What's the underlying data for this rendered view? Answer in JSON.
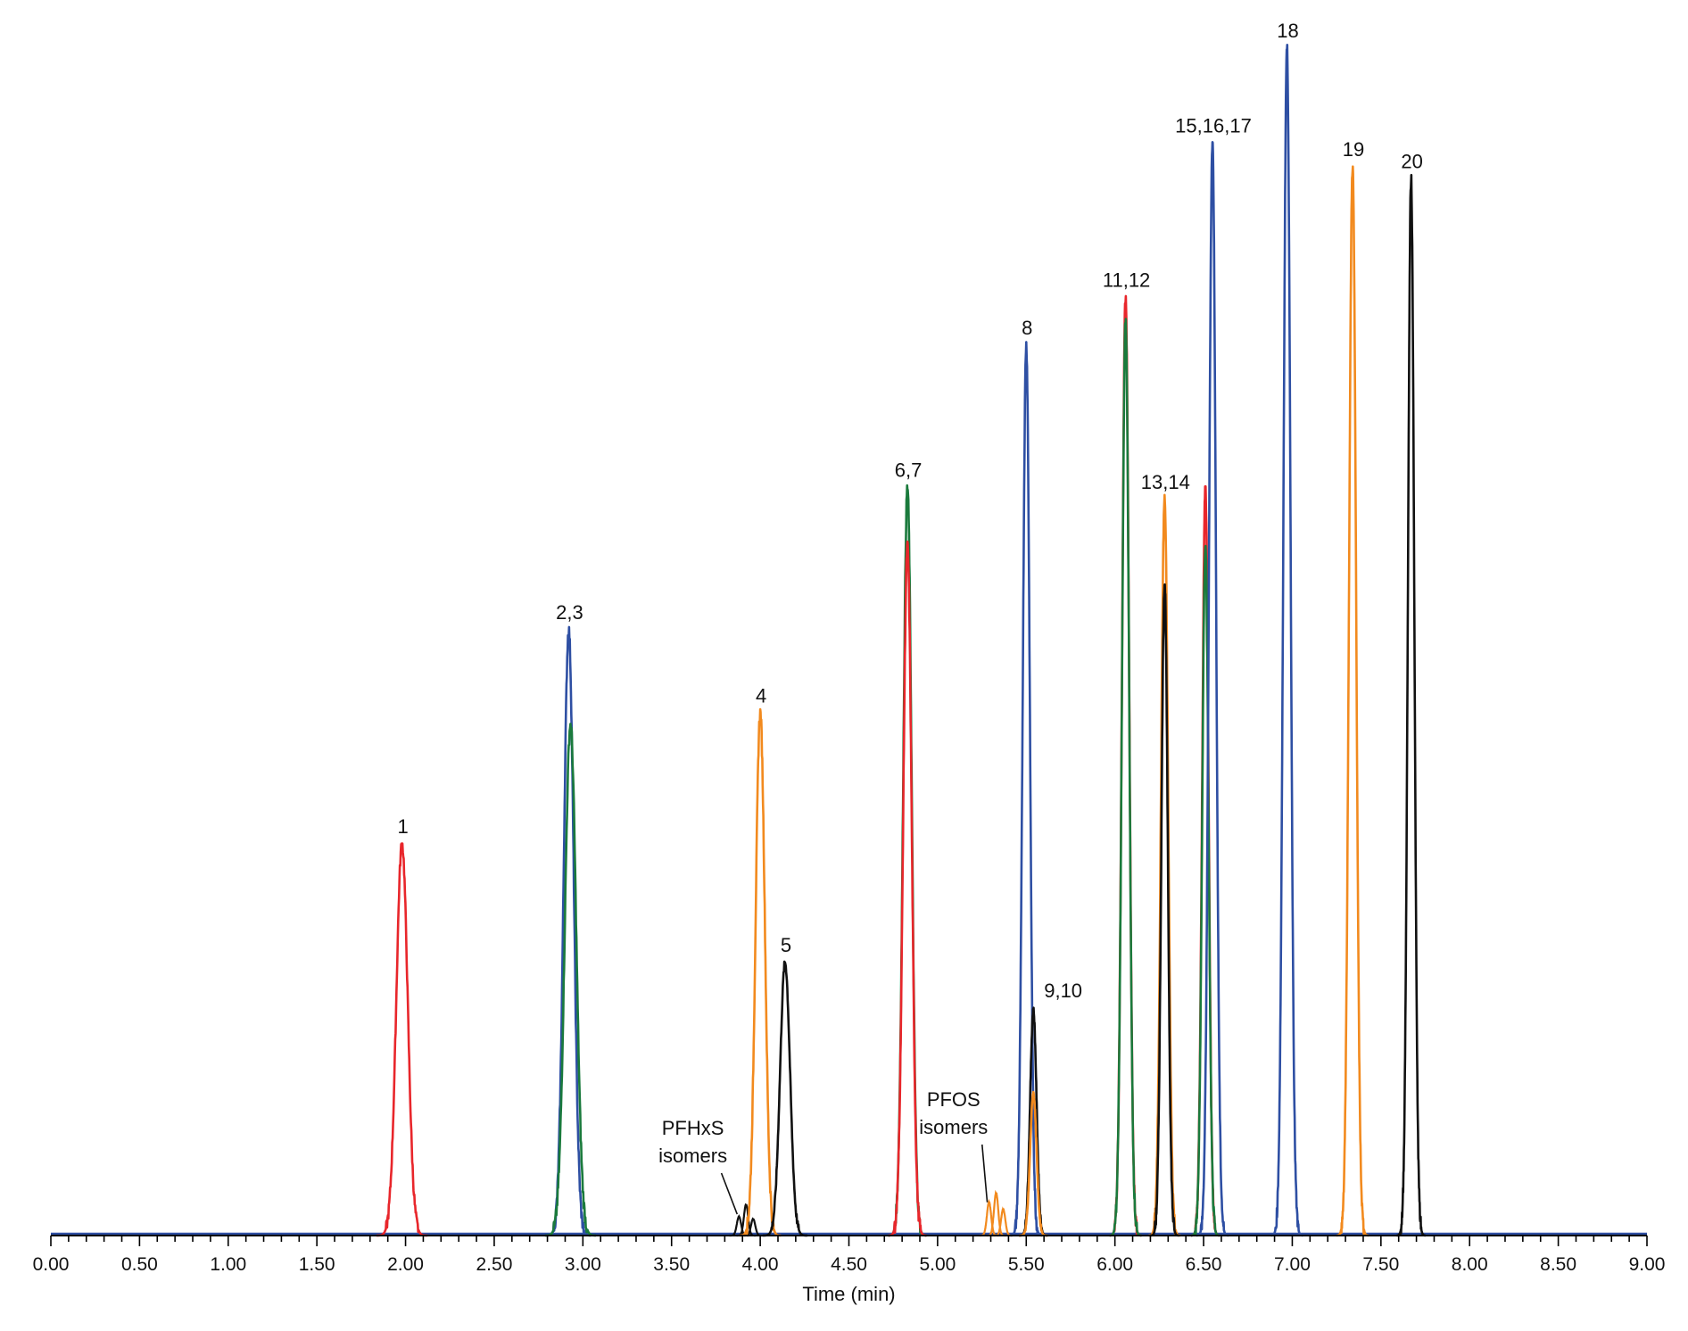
{
  "chart_data": {
    "type": "line",
    "xlabel": "Time (min)",
    "xlim": [
      0,
      9
    ],
    "ylim": [
      0,
      100
    ],
    "tick_labels": [
      "0.00",
      "0.50",
      "1.00",
      "1.50",
      "2.00",
      "2.50",
      "3.00",
      "3.50",
      "4.00",
      "4.50",
      "5.00",
      "5.50",
      "6.00",
      "6.50",
      "7.00",
      "7.50",
      "8.00",
      "8.50",
      "9.00"
    ],
    "colors": {
      "red": "#e8262b",
      "green": "#1a7a3c",
      "orange": "#f28a1e",
      "black": "#111111",
      "blue": "#2e4fa3",
      "axis": "#000000"
    },
    "peaks": [
      {
        "label": "1",
        "rt": 1.98,
        "height": 33,
        "color": "red",
        "width": 0.032
      },
      {
        "label": "2,3",
        "rt": 2.92,
        "height": 51,
        "color": "blue",
        "width": 0.028
      },
      {
        "label": "",
        "rt": 2.93,
        "height": 43,
        "color": "green",
        "width": 0.032
      },
      {
        "label": "4",
        "rt": 4.0,
        "height": 44,
        "color": "orange",
        "width": 0.026
      },
      {
        "label": "5",
        "rt": 4.14,
        "height": 23,
        "color": "black",
        "width": 0.028
      },
      {
        "label": "6,7",
        "rt": 4.83,
        "height": 63,
        "color": "green",
        "width": 0.024
      },
      {
        "label": "",
        "rt": 4.83,
        "height": 58,
        "color": "red",
        "width": 0.024
      },
      {
        "label": "8",
        "rt": 5.5,
        "height": 75,
        "color": "blue",
        "width": 0.02
      },
      {
        "label": "9,10",
        "rt": 5.54,
        "height": 19,
        "color": "black",
        "width": 0.018
      },
      {
        "label": "",
        "rt": 5.54,
        "height": 12,
        "color": "orange",
        "width": 0.018
      },
      {
        "label": "11,12",
        "rt": 6.06,
        "height": 79,
        "color": "red",
        "width": 0.02
      },
      {
        "label": "",
        "rt": 6.06,
        "height": 77,
        "color": "green",
        "width": 0.02
      },
      {
        "label": "13,14",
        "rt": 6.28,
        "height": 62,
        "color": "orange",
        "width": 0.02
      },
      {
        "label": "",
        "rt": 6.28,
        "height": 55,
        "color": "black",
        "width": 0.018
      },
      {
        "label": "",
        "rt": 6.51,
        "height": 63,
        "color": "red",
        "width": 0.018
      },
      {
        "label": "",
        "rt": 6.51,
        "height": 58,
        "color": "green",
        "width": 0.018
      },
      {
        "label": "15,16,17",
        "rt": 6.55,
        "height": 92,
        "color": "blue",
        "width": 0.02
      },
      {
        "label": "18",
        "rt": 6.97,
        "height": 100,
        "color": "blue",
        "width": 0.02
      },
      {
        "label": "19",
        "rt": 7.34,
        "height": 90,
        "color": "orange",
        "width": 0.02
      },
      {
        "label": "20",
        "rt": 7.67,
        "height": 89,
        "color": "black",
        "width": 0.018
      }
    ],
    "isomer_clusters": [
      {
        "color": "black",
        "bumps": [
          [
            3.88,
            1.6
          ],
          [
            3.92,
            2.6
          ],
          [
            3.96,
            1.4
          ]
        ]
      },
      {
        "color": "orange",
        "bumps": [
          [
            5.29,
            2.8
          ],
          [
            5.33,
            3.6
          ],
          [
            5.37,
            2.2
          ]
        ]
      }
    ],
    "annotations": [
      {
        "lines": [
          "PFHxS",
          "isomers"
        ],
        "target_rt": 3.91
      },
      {
        "lines": [
          "PFOS",
          "isomers"
        ],
        "target_rt": 5.31
      }
    ]
  }
}
